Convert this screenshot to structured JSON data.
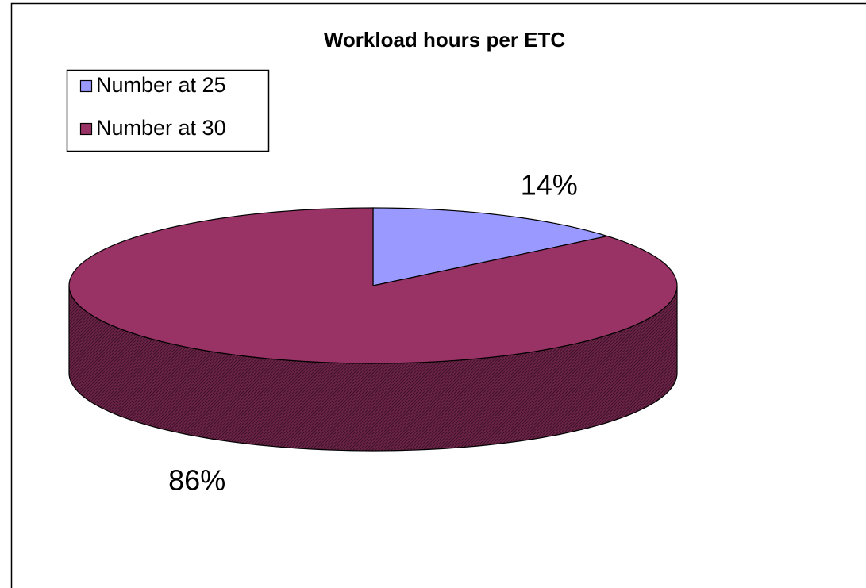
{
  "chart_data": {
    "type": "pie",
    "title": "Workload hours per ETC",
    "categories": [
      "Number at 25",
      "Number at 30"
    ],
    "values": [
      14,
      86
    ],
    "value_labels": [
      "14%",
      "86%"
    ],
    "colors": [
      "#9999ff",
      "#993366"
    ],
    "legend": "top-left"
  }
}
